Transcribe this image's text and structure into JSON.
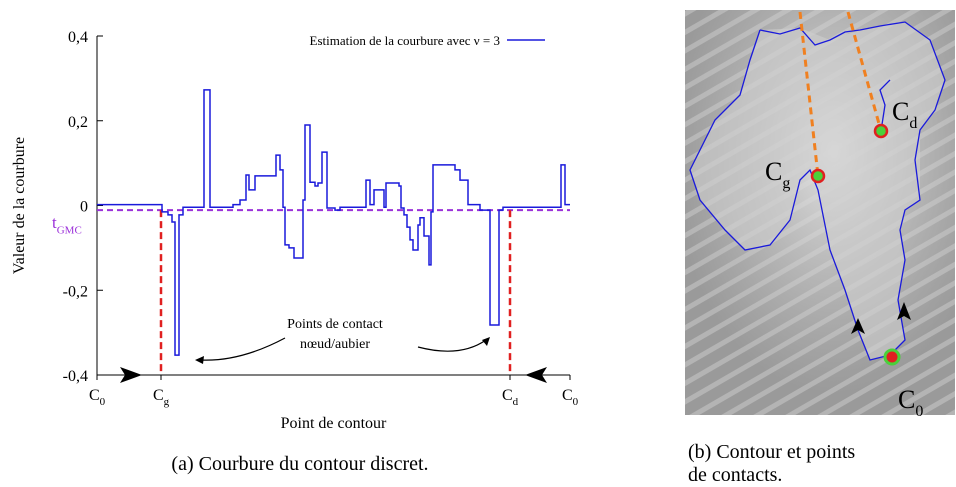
{
  "chart_data": {
    "type": "line",
    "ylabel": "Valeur de la courbure",
    "xlabel": "Point de contour",
    "caption": "(a) Courbure du contour discret.",
    "xlim": [
      0,
      473
    ],
    "ylim": [
      -0.4,
      0.4
    ],
    "yticks": [
      {
        "value": 0.4,
        "label": "0,4"
      },
      {
        "value": 0.2,
        "label": "0,2"
      },
      0,
      {
        "value": -0.2,
        "label": "-0,2"
      },
      {
        "value": -0.4,
        "label": "-0,4"
      }
    ],
    "xticks": [
      {
        "value": 0,
        "label": "C",
        "subscript": "0"
      },
      {
        "value": 64,
        "label": "C",
        "subscript": "g"
      },
      {
        "value": 413,
        "label": "C",
        "subscript": "d"
      },
      {
        "value": 473,
        "label": "C",
        "subscript": "0"
      }
    ],
    "threshold": {
      "value": -0.011,
      "label": "t",
      "subscript": "GMC",
      "color": "#9b30d9"
    },
    "contact_color": "#e02020",
    "annotation": [
      "Points de contact",
      "nœud/aubier"
    ],
    "series": [
      {
        "name": "Estimation de la courbure avec ν = 3",
        "color": "#1a1adb",
        "x": [
          0,
          65,
          65,
          71,
          71,
          75,
          75,
          78,
          78,
          82,
          82,
          86,
          86,
          107,
          107,
          113,
          113,
          136,
          136,
          143,
          143,
          149,
          149,
          152,
          152,
          158,
          158,
          179,
          179,
          183,
          183,
          186,
          186,
          188,
          188,
          192,
          192,
          197,
          197,
          206,
          206,
          208,
          208,
          213,
          213,
          218,
          218,
          221,
          221,
          225,
          225,
          230,
          230,
          238,
          238,
          243,
          243,
          269,
          269,
          273,
          273,
          277,
          277,
          287,
          287,
          289,
          289,
          302,
          302,
          304,
          304,
          307,
          307,
          310,
          310,
          313,
          313,
          316,
          316,
          321,
          321,
          323,
          323,
          327,
          327,
          332,
          332,
          334,
          334,
          336,
          336,
          358,
          358,
          363,
          363,
          371,
          371,
          383,
          383,
          393,
          393,
          402,
          402,
          406,
          406,
          464,
          464,
          468,
          468,
          473
        ],
        "values": [
          0.002,
          0.002,
          -0.015,
          -0.015,
          -0.022,
          -0.022,
          -0.039,
          -0.039,
          -0.353,
          -0.353,
          -0.022,
          -0.022,
          -0.004,
          -0.004,
          0.273,
          0.273,
          -0.004,
          -0.004,
          0.002,
          0.002,
          0.013,
          0.013,
          0.072,
          0.072,
          0.037,
          0.037,
          0.07,
          0.07,
          0.119,
          0.119,
          0.084,
          0.084,
          -0.004,
          -0.004,
          -0.093,
          -0.093,
          -0.1,
          -0.1,
          -0.124,
          -0.124,
          0.013,
          0.013,
          0.19,
          0.19,
          0.055,
          0.055,
          0.046,
          0.046,
          0.053,
          0.053,
          0.126,
          0.126,
          -0.006,
          -0.006,
          -0.011,
          -0.011,
          -0.004,
          -0.004,
          0.06,
          0.06,
          0.002,
          0.002,
          0.037,
          0.037,
          -0.004,
          -0.004,
          0.053,
          0.053,
          0.046,
          0.046,
          -0.006,
          -0.006,
          -0.022,
          -0.022,
          -0.051,
          -0.051,
          -0.081,
          -0.081,
          -0.105,
          -0.105,
          -0.046,
          -0.046,
          -0.029,
          -0.029,
          -0.072,
          -0.072,
          -0.14,
          -0.14,
          -0.015,
          -0.015,
          0.096,
          0.096,
          0.084,
          0.084,
          0.06,
          0.06,
          0.002,
          0.002,
          -0.011,
          -0.011,
          -0.282,
          -0.282,
          -0.011,
          -0.011,
          -0.004,
          -0.004,
          0.096,
          0.096,
          0.002,
          0.002
        ]
      }
    ]
  },
  "image": {
    "caption": [
      "(b) Contour et points",
      "de contacts."
    ],
    "labels": [
      {
        "label": "C",
        "subscript": "g"
      },
      {
        "label": "C",
        "subscript": "d"
      },
      {
        "label": "C",
        "subscript": "0"
      }
    ]
  }
}
